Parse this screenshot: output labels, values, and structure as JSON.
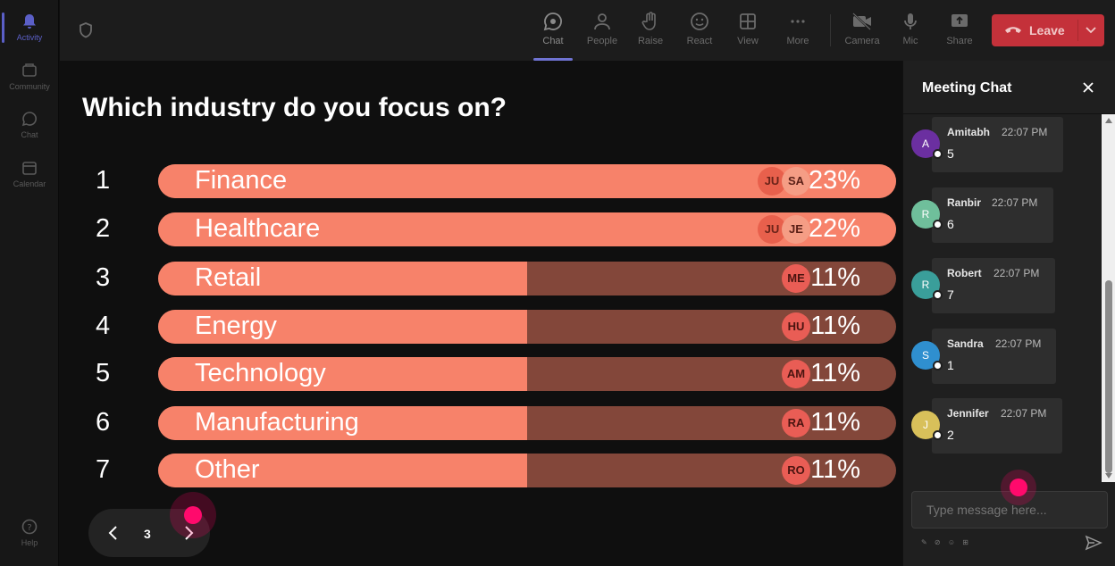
{
  "rail": {
    "items": [
      {
        "label": "Activity",
        "icon": "bell-icon",
        "active": true
      },
      {
        "label": "Community",
        "icon": "community-icon"
      },
      {
        "label": "Chat",
        "icon": "chat-icon"
      },
      {
        "label": "Calendar",
        "icon": "calendar-icon"
      }
    ],
    "help": {
      "label": "Help",
      "icon": "help-icon"
    }
  },
  "toolbar": {
    "chat": "Chat",
    "people": "People",
    "raise": "Raise",
    "react": "React",
    "view": "View",
    "more": "More",
    "camera": "Camera",
    "mic": "Mic",
    "share": "Share",
    "leave": "Leave"
  },
  "poll": {
    "question": "Which industry do you focus on?",
    "options": [
      {
        "rank": "1",
        "label": "Finance",
        "percent": "23%",
        "share": 23,
        "avatars": [
          "JU",
          "SA"
        ]
      },
      {
        "rank": "2",
        "label": "Healthcare",
        "percent": "22%",
        "share": 22,
        "avatars": [
          "JU",
          "JE"
        ]
      },
      {
        "rank": "3",
        "label": "Retail",
        "percent": "11%",
        "share": 11,
        "avatars": [
          "ME"
        ]
      },
      {
        "rank": "4",
        "label": "Energy",
        "percent": "11%",
        "share": 11,
        "avatars": [
          "HU"
        ]
      },
      {
        "rank": "5",
        "label": "Technology",
        "percent": "11%",
        "share": 11,
        "avatars": [
          "AM"
        ]
      },
      {
        "rank": "6",
        "label": "Manufacturing",
        "percent": "11%",
        "share": 11,
        "avatars": [
          "RA"
        ]
      },
      {
        "rank": "7",
        "label": "Other",
        "percent": "11%",
        "share": 11,
        "avatars": [
          "RO"
        ]
      }
    ],
    "page": "3"
  },
  "chat": {
    "title": "Meeting Chat",
    "messages": [
      {
        "initial": "A",
        "name": "Amitabh",
        "time": "22:07 PM",
        "text": "5",
        "color": "#6b2fa0"
      },
      {
        "initial": "R",
        "name": "Ranbir",
        "time": "22:07 PM",
        "text": "6",
        "color": "#6fbf9b"
      },
      {
        "initial": "R",
        "name": "Robert",
        "time": "22:07 PM",
        "text": "7",
        "color": "#3a9e9a"
      },
      {
        "initial": "S",
        "name": "Sandra",
        "time": "22:07 PM",
        "text": "1",
        "color": "#2f8fcf"
      },
      {
        "initial": "J",
        "name": "Jennifer",
        "time": "22:07 PM",
        "text": "2",
        "color": "#d8c05a"
      }
    ],
    "input_placeholder": "Type message here...",
    "format_icons": "✎ ⊘ ☺ ⊞"
  },
  "colors": {
    "bar_fill": "#f7826a",
    "bar_track": "#83473a",
    "accent": "#5b5fc7",
    "leave": "#c4313a",
    "pointer": "#ff0a6c"
  }
}
